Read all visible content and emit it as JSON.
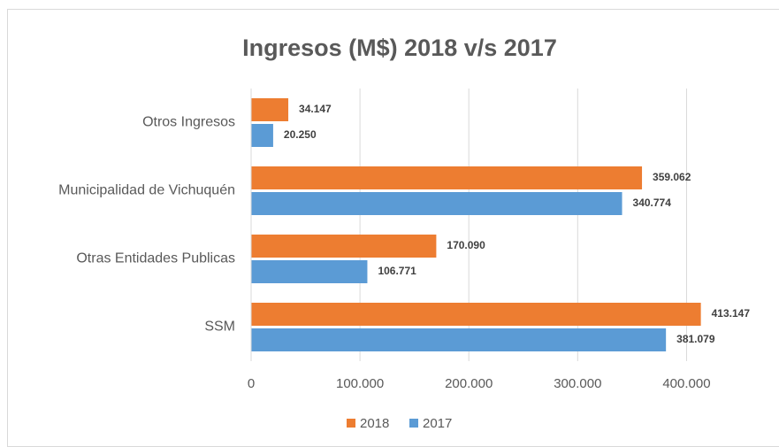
{
  "chart_data": {
    "type": "bar",
    "orientation": "horizontal",
    "title": "Ingresos (M$) 2018 v/s 2017",
    "categories": [
      "Otros Ingresos",
      "Municipalidad de Vichuquén",
      "Otras Entidades Publicas",
      "SSM"
    ],
    "series": [
      {
        "name": "2018",
        "color": "#ed7d31",
        "values": [
          34147,
          359062,
          170090,
          413147
        ],
        "value_labels": [
          "34.147",
          "359.062",
          "170.090",
          "413.147"
        ]
      },
      {
        "name": "2017",
        "color": "#5b9bd5",
        "values": [
          20250,
          340774,
          106771,
          381079
        ],
        "value_labels": [
          "20.250",
          "340.774",
          "106.771",
          "381.079"
        ]
      }
    ],
    "xlim": [
      0,
      450000
    ],
    "xticks": [
      0,
      {
        "value": 100000,
        "label": "100.000"
      },
      {
        "value": 200000,
        "label": "200.000"
      },
      {
        "value": 300000,
        "label": "300.000"
      },
      {
        "value": 400000,
        "label": "400.000"
      }
    ],
    "grid": true,
    "legend": "bottom"
  }
}
